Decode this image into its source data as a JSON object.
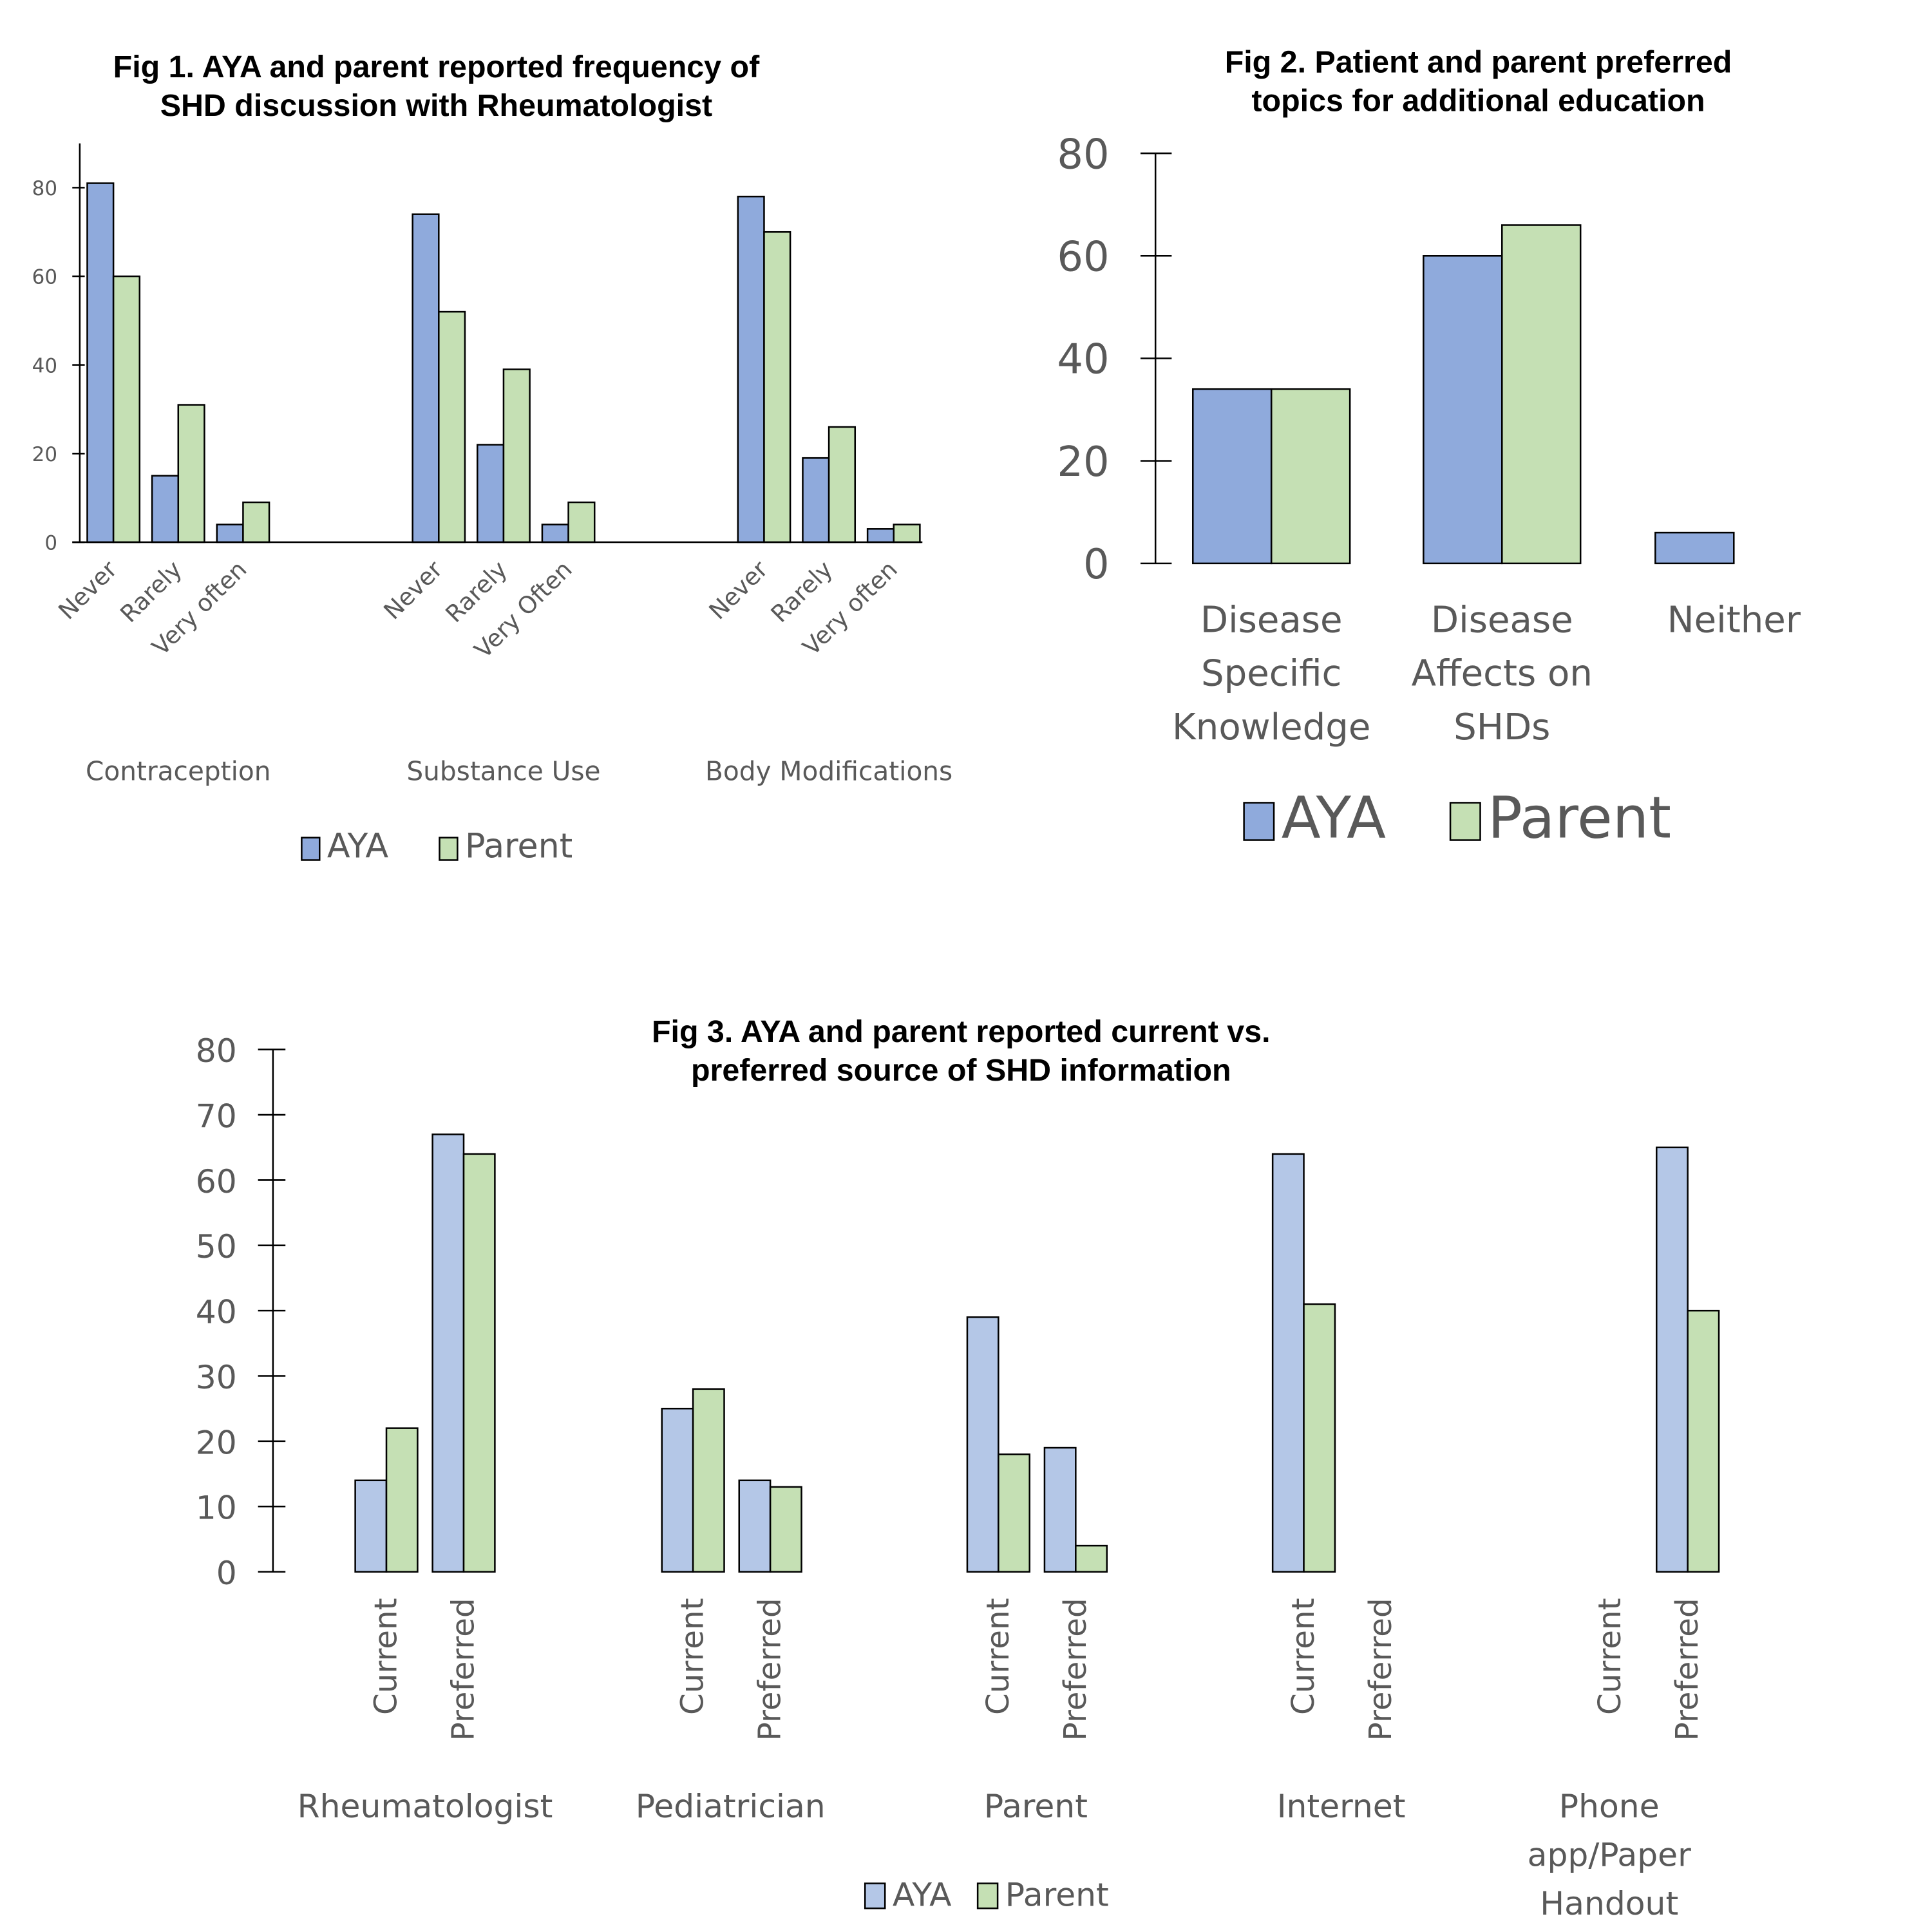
{
  "chart_data": [
    {
      "id": "fig1",
      "type": "bar",
      "title": "Fig 1. AYA and parent reported frequency of SHD discussion with Rheumatologist",
      "title_lines": [
        "Fig 1. AYA and parent reported frequency of",
        "SHD discussion with Rheumatologist"
      ],
      "xlabel": "",
      "ylabel": "",
      "ylim": [
        0,
        90
      ],
      "yticks": [
        0,
        20,
        40,
        60,
        80
      ],
      "groups": [
        {
          "label": "Contraception",
          "categories": [
            "Never",
            "Rarely",
            "Very often"
          ]
        },
        {
          "label": "Substance Use",
          "categories": [
            "Never",
            "Rarely",
            "Very Often"
          ]
        },
        {
          "label": "Body Modifications",
          "categories": [
            "Never",
            "Rarely",
            "Very often"
          ]
        }
      ],
      "series": [
        {
          "name": "AYA",
          "color": "#8faadc",
          "values": [
            [
              81,
              15,
              4
            ],
            [
              74,
              22,
              4
            ],
            [
              78,
              19,
              3
            ]
          ]
        },
        {
          "name": "Parent",
          "color": "#c5e0b4",
          "values": [
            [
              60,
              31,
              9
            ],
            [
              52,
              39,
              9
            ],
            [
              70,
              26,
              4
            ]
          ]
        }
      ],
      "legend": {
        "position": "bottom",
        "entries": [
          "AYA",
          "Parent"
        ]
      },
      "grid": false
    },
    {
      "id": "fig2",
      "type": "bar",
      "title": "Fig 2. Patient and parent preferred topics for additional education",
      "title_lines": [
        "Fig 2. Patient and parent preferred",
        "topics for additional education"
      ],
      "xlabel": "",
      "ylabel": "",
      "ylim": [
        0,
        80
      ],
      "yticks": [
        0,
        20,
        40,
        60,
        80
      ],
      "categories": [
        "Disease Specific Knowledge",
        "Disease Affects on SHDs",
        "Neither"
      ],
      "category_lines": [
        [
          "Disease",
          "Specific",
          "Knowledge"
        ],
        [
          "Disease",
          "Affects on",
          "SHDs"
        ],
        [
          "Neither"
        ]
      ],
      "series": [
        {
          "name": "AYA",
          "color": "#8faadc",
          "values": [
            34,
            60,
            6
          ]
        },
        {
          "name": "Parent",
          "color": "#c5e0b4",
          "values": [
            34,
            66,
            0
          ]
        }
      ],
      "legend": {
        "position": "bottom",
        "entries": [
          "AYA",
          "Parent"
        ]
      },
      "grid": false
    },
    {
      "id": "fig3",
      "type": "bar",
      "title": "Fig 3. AYA and parent reported current vs. preferred source of SHD information",
      "title_lines": [
        "Fig 3. AYA and parent reported current vs.",
        "preferred source of SHD information"
      ],
      "xlabel": "",
      "ylabel": "",
      "ylim": [
        0,
        80
      ],
      "yticks": [
        0,
        10,
        20,
        30,
        40,
        50,
        60,
        70,
        80
      ],
      "groups": [
        {
          "label": "Rheumatologist",
          "label_lines": [
            "Rheumatologist"
          ],
          "categories": [
            "Current",
            "Preferred"
          ]
        },
        {
          "label": "Pediatrician",
          "label_lines": [
            "Pediatrician"
          ],
          "categories": [
            "Current",
            "Preferred"
          ]
        },
        {
          "label": "Parent",
          "label_lines": [
            "Parent"
          ],
          "categories": [
            "Current",
            "Preferred"
          ]
        },
        {
          "label": "Internet",
          "label_lines": [
            "Internet"
          ],
          "categories": [
            "Current",
            "Preferred"
          ]
        },
        {
          "label": "Phone app/Paper Handout",
          "label_lines": [
            "Phone",
            "app/Paper",
            "Handout"
          ],
          "categories": [
            "Current",
            "Preferred"
          ]
        }
      ],
      "series": [
        {
          "name": "AYA",
          "color": "#b4c7e7",
          "values": [
            [
              14,
              67
            ],
            [
              25,
              14
            ],
            [
              39,
              19
            ],
            [
              64,
              0
            ],
            [
              0,
              65
            ]
          ]
        },
        {
          "name": "Parent",
          "color": "#c5e0b4",
          "values": [
            [
              22,
              64
            ],
            [
              28,
              13
            ],
            [
              18,
              4
            ],
            [
              41,
              0
            ],
            [
              0,
              40
            ]
          ]
        }
      ],
      "legend": {
        "position": "bottom",
        "entries": [
          "AYA",
          "Parent"
        ]
      },
      "grid": false
    }
  ]
}
